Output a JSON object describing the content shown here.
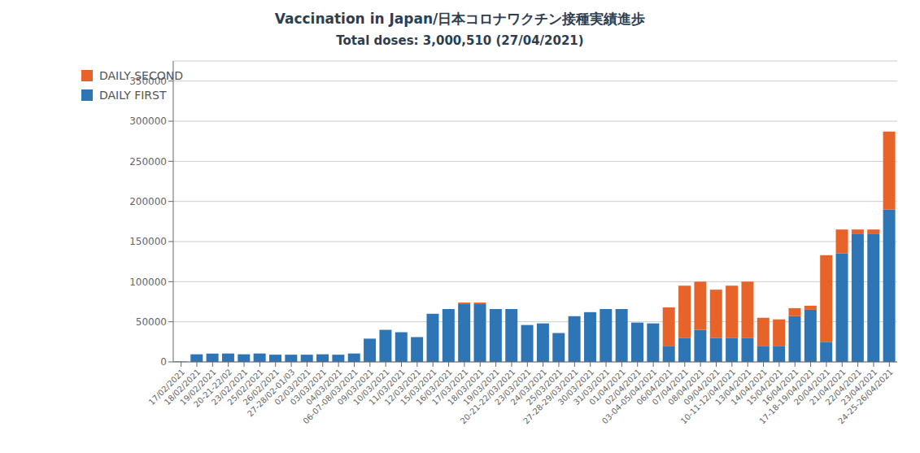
{
  "chart_data": {
    "type": "bar",
    "title": "Vaccination in Japan/日本コロナワクチン接種実績進歩",
    "subtitle": "Total doses: 3,000,510  (27/04/2021)",
    "categories": [
      "17/02/2021",
      "18/02/2021",
      "19/02/2021",
      "20-21-22/02",
      "23/02/2021",
      "25/02/2021",
      "26/02/2021",
      "27-28/02-01/03",
      "02/03/2021",
      "03/03/2021",
      "04/03/2021",
      "06-07-08/03/2021",
      "09/03/2021",
      "10/03/2021",
      "11/03/2021",
      "12/03/2021",
      "15/03/2021",
      "16/03/2021",
      "17/03/2021",
      "18/03/2021",
      "19/03/2021",
      "20-21-22/03/2021",
      "23/03/2021",
      "24/03/2021",
      "25/03/2021",
      "27-28-29/03/2021",
      "30/03/2021",
      "31/03/2021",
      "01/04/2021",
      "02/04/2021",
      "03-04-05/04/2021",
      "06/04/2021",
      "07/04/2021",
      "08/04/2021",
      "09/04/2021",
      "10-11-12/04/2021",
      "13/04/2021",
      "14/04/2021",
      "15/04/2021",
      "16/04/2021",
      "17-18-19/04/2021",
      "20/04/2021",
      "21/04/2021",
      "22/04/2021",
      "23/04/2021",
      "24-25-26/04/2021"
    ],
    "series": [
      {
        "name": "DAILY FIRST",
        "color": "#2E75B6",
        "values": [
          500,
          9500,
          10500,
          10500,
          9500,
          10500,
          9000,
          9000,
          9000,
          9500,
          9000,
          10500,
          29000,
          40000,
          37000,
          31000,
          60000,
          66000,
          72000,
          72000,
          66000,
          66000,
          46000,
          48000,
          36000,
          57000,
          62000,
          66000,
          66000,
          49000,
          48000,
          20000,
          30000,
          40000,
          30000,
          30000,
          30000,
          20000,
          20000,
          57000,
          65000,
          25000,
          135000,
          160000,
          160000,
          190000
        ]
      },
      {
        "name": "DAILY SECOND",
        "color": "#E8632A",
        "values": [
          0,
          0,
          0,
          0,
          0,
          0,
          0,
          0,
          0,
          0,
          0,
          0,
          0,
          0,
          0,
          0,
          0,
          0,
          2000,
          2000,
          0,
          0,
          0,
          0,
          0,
          0,
          0,
          0,
          0,
          0,
          0,
          48000,
          65000,
          60000,
          60000,
          65000,
          70000,
          35000,
          33000,
          10000,
          5000,
          108000,
          30000,
          5000,
          5000,
          97000
        ]
      }
    ],
    "stacked": true,
    "ylim": [
      0,
      375000
    ],
    "yticks": [
      0,
      50000,
      100000,
      150000,
      200000,
      250000,
      300000,
      350000
    ],
    "grid": true,
    "legend": "upper left"
  }
}
